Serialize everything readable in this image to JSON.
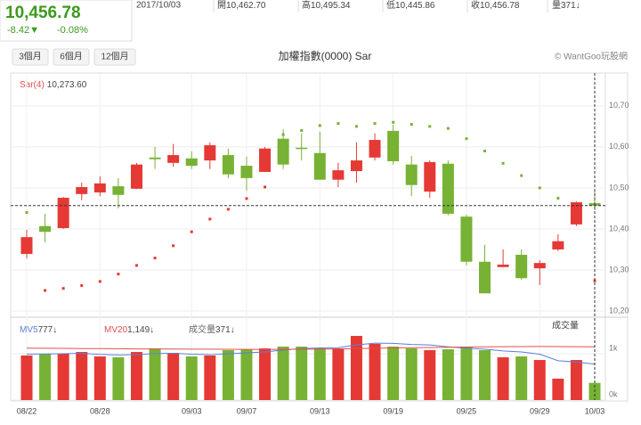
{
  "quote": {
    "price": "10,456.78",
    "change": "-8.42▼",
    "change_pct": "-0.08%",
    "date": "2017/10/03",
    "open_label": "開",
    "open": "10,462.70",
    "high_label": "高",
    "high": "10,495.34",
    "low_label": "低",
    "low": "10,445.86",
    "close_label": "收",
    "close": "10,456.78",
    "volume_label": "量",
    "volume": "371↓"
  },
  "toolbar": {
    "buttons": [
      "3個月",
      "6個月",
      "12個月"
    ],
    "credit": "© WantGoo玩股網"
  },
  "chart_data": {
    "type": "candlestick",
    "title": "加權指數(0000) Sar",
    "sar_label": "Sar(4)",
    "sar_value": "10,273.60",
    "up_color": "#e53935",
    "down_color": "#77b234",
    "categories": [
      "08/22",
      null,
      null,
      null,
      "08/28",
      null,
      null,
      null,
      null,
      "09/03",
      null,
      null,
      "09/07",
      null,
      null,
      null,
      "09/13",
      null,
      null,
      null,
      "09/19",
      null,
      null,
      null,
      "09/25",
      null,
      null,
      null,
      "09/29",
      null,
      null,
      "10/03"
    ],
    "open": [
      10339,
      10407,
      10402,
      10485,
      10489,
      10504,
      10498,
      10574,
      10561,
      10572,
      10567,
      10580,
      10554,
      10539,
      10620,
      10598,
      10585,
      10520,
      10541,
      10574,
      10639,
      10557,
      10491,
      10559,
      10430,
      10320,
      10307,
      10337,
      10304,
      10350,
      10411,
      10462.7
    ],
    "high": [
      10398,
      10437,
      10478,
      10513,
      10528,
      10524,
      10561,
      10600,
      10607,
      10589,
      10611,
      10596,
      10576,
      10600,
      10643,
      10633,
      10637,
      10561,
      10611,
      10633,
      10654,
      10578,
      10567,
      10567,
      10435,
      10361,
      10350,
      10350,
      10324,
      10387,
      10467,
      10495.34
    ],
    "low": [
      10328,
      10367,
      10400,
      10470,
      10480,
      10450,
      10497,
      10546,
      10552,
      10546,
      10546,
      10524,
      10493,
      10539,
      10546,
      10567,
      10520,
      10502,
      10513,
      10567,
      10557,
      10480,
      10476,
      10433,
      10311,
      10243,
      10307,
      10276,
      10263,
      10346,
      10407,
      10445.86
    ],
    "close": [
      10380,
      10393,
      10476,
      10502,
      10511,
      10483,
      10557,
      10570,
      10580,
      10554,
      10604,
      10533,
      10524,
      10596,
      10557,
      10596,
      10520,
      10543,
      10567,
      10617,
      10565,
      10507,
      10563,
      10437,
      10320,
      10243,
      10313,
      10280,
      10317,
      10370,
      10465,
      10456.78
    ],
    "sar": [
      10440,
      10250,
      10255,
      10262,
      10272,
      10290,
      10311,
      10329,
      10359,
      10393,
      10424,
      10448,
      10474,
      10502,
      10630,
      10640,
      10652,
      10657,
      10650,
      10657,
      10660,
      10655,
      10650,
      10645,
      10620,
      10590,
      10560,
      10530,
      10500,
      10475,
      10452,
      10273.6
    ],
    "ylim": [
      10187,
      10780
    ],
    "yticks": [
      {
        "value": 10700,
        "label": "10,70"
      },
      {
        "value": 10600,
        "label": "10,60"
      },
      {
        "value": 10500,
        "label": "10,50"
      },
      {
        "value": 10400,
        "label": "10,40"
      },
      {
        "value": 10300,
        "label": "10,30"
      },
      {
        "value": 10200,
        "label": "10,20"
      }
    ],
    "volume_title": "成交量",
    "volume": [
      962,
      1000,
      1000,
      1038,
      942,
      923,
      1038,
      1115,
      1019,
      942,
      962,
      1077,
      1096,
      1115,
      1154,
      1154,
      1115,
      1115,
      1385,
      1212,
      1154,
      1115,
      1077,
      1096,
      1154,
      1077,
      923,
      942,
      865,
      462,
      865,
      371
    ],
    "vlim": [
      0,
      1770
    ],
    "vticks": [
      {
        "value": 1000,
        "label": "1k"
      },
      {
        "value": 0,
        "label": "0k"
      }
    ],
    "ma": [
      {
        "name": "MV5",
        "value_label": "777↓",
        "color": "#5b7fd6",
        "values": [
          990,
          995,
          1000,
          1010,
          985,
          975,
          980,
          1005,
          1010,
          990,
          980,
          1000,
          1020,
          1040,
          1080,
          1110,
          1125,
          1130,
          1190,
          1230,
          1225,
          1200,
          1190,
          1150,
          1120,
          1100,
          1060,
          1040,
          990,
          850,
          820,
          777
        ]
      },
      {
        "name": "MV20",
        "value_label": "1,149↓",
        "color": "#e05050",
        "values": [
          1120,
          1118,
          1115,
          1112,
          1110,
          1108,
          1105,
          1104,
          1102,
          1100,
          1098,
          1096,
          1095,
          1094,
          1095,
          1098,
          1100,
          1104,
          1110,
          1118,
          1125,
          1130,
          1135,
          1140,
          1145,
          1150,
          1152,
          1155,
          1157,
          1154,
          1152,
          1149
        ]
      },
      {
        "name": "成交量",
        "value_label": "371↓",
        "color": "#666666",
        "values": []
      }
    ]
  }
}
